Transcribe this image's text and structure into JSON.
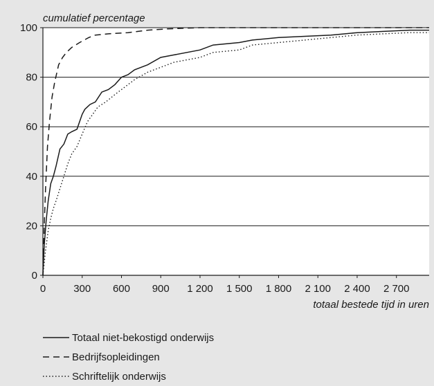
{
  "chart_data": {
    "type": "line",
    "title": "",
    "ylabel": "cumulatief percentage",
    "xlabel": "totaal bestede tijd in uren",
    "xlim": [
      0,
      2950
    ],
    "ylim": [
      0,
      100
    ],
    "x_ticks": [
      0,
      300,
      600,
      900,
      1200,
      1500,
      1800,
      2100,
      2400,
      2700
    ],
    "x_tick_labels": [
      "0",
      "300",
      "600",
      "900",
      "1 200",
      "1 500",
      "1 800",
      "2 100",
      "2 400",
      "2 700"
    ],
    "y_ticks": [
      0,
      20,
      40,
      60,
      80,
      100
    ],
    "y_tick_labels": [
      "0",
      "20",
      "40",
      "60",
      "80",
      "100"
    ],
    "grid": "horizontal",
    "legend_position": "bottom",
    "series": [
      {
        "name": "Totaal niet-bekostigd onderwijs",
        "style": "solid",
        "x": [
          0,
          10,
          25,
          40,
          60,
          80,
          100,
          130,
          160,
          190,
          220,
          260,
          300,
          320,
          360,
          400,
          450,
          500,
          550,
          600,
          650,
          700,
          800,
          900,
          1000,
          1200,
          1300,
          1500,
          1600,
          1800,
          2000,
          2200,
          2400,
          2600,
          2800,
          2950
        ],
        "y": [
          0,
          12,
          22,
          30,
          37,
          40,
          44,
          51,
          53,
          57,
          58,
          59,
          65,
          67,
          69,
          70,
          74,
          75,
          77,
          80,
          81,
          83,
          85,
          88,
          89,
          91,
          93,
          94,
          95,
          96,
          96.5,
          97,
          98,
          98.5,
          99,
          99
        ]
      },
      {
        "name": "Bedrijfsopleidingen",
        "style": "dashed",
        "x": [
          0,
          10,
          20,
          35,
          50,
          70,
          90,
          120,
          150,
          180,
          220,
          280,
          350,
          400,
          500,
          650,
          800,
          950,
          1200,
          1500,
          2000,
          2950
        ],
        "y": [
          0,
          20,
          35,
          52,
          62,
          72,
          78,
          85,
          88,
          90,
          92,
          94,
          96,
          97,
          97.5,
          98,
          99,
          99.5,
          100,
          100,
          100,
          100
        ]
      },
      {
        "name": "Schriftelijk onderwijs",
        "style": "dotted",
        "x": [
          0,
          20,
          40,
          60,
          80,
          100,
          130,
          160,
          190,
          220,
          260,
          300,
          340,
          380,
          420,
          480,
          550,
          600,
          650,
          700,
          800,
          900,
          1000,
          1100,
          1200,
          1300,
          1500,
          1600,
          1800,
          2000,
          2200,
          2400,
          2600,
          2800,
          2950
        ],
        "y": [
          0,
          10,
          18,
          23,
          27,
          30,
          35,
          40,
          45,
          49,
          52,
          57,
          62,
          65,
          68,
          70,
          73,
          75,
          77,
          79,
          82,
          84,
          86,
          87,
          88,
          90,
          91,
          93,
          94,
          95,
          96,
          97,
          97.5,
          98,
          98
        ]
      }
    ]
  },
  "colors": {
    "background": "#e6e6e6",
    "plot_area": "#ffffff",
    "lines": "#1a1a1a",
    "grid": "#1a1a1a"
  }
}
